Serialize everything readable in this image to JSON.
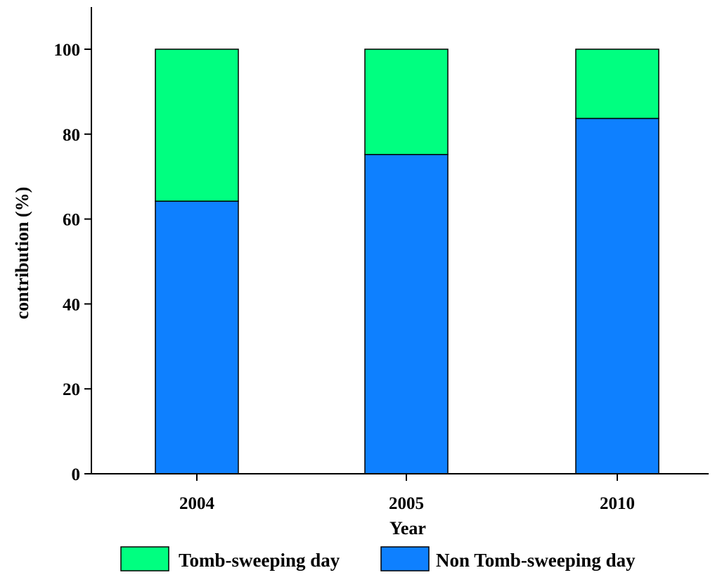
{
  "chart_data": {
    "type": "bar",
    "stacked": true,
    "categories": [
      "2004",
      "2005",
      "2010"
    ],
    "series": [
      {
        "name": "Non Tomb-sweeping day",
        "values": [
          64.2,
          75.2,
          83.7
        ],
        "color": "#0e80ff"
      },
      {
        "name": "Tomb-sweeping day",
        "values": [
          35.8,
          24.8,
          16.3
        ],
        "color": "#00ff80"
      }
    ],
    "xlabel": "Year",
    "ylabel": "contribution (%)",
    "ylim": [
      0,
      110
    ],
    "yticks": [
      0,
      20,
      40,
      60,
      80,
      100
    ],
    "ytick_labels": [
      "0",
      "20",
      "40",
      "60",
      "80",
      "100"
    ],
    "grid": false,
    "legend": {
      "placement": "bottom",
      "entries": [
        "Tomb-sweeping day",
        "Non Tomb-sweeping day"
      ]
    }
  }
}
